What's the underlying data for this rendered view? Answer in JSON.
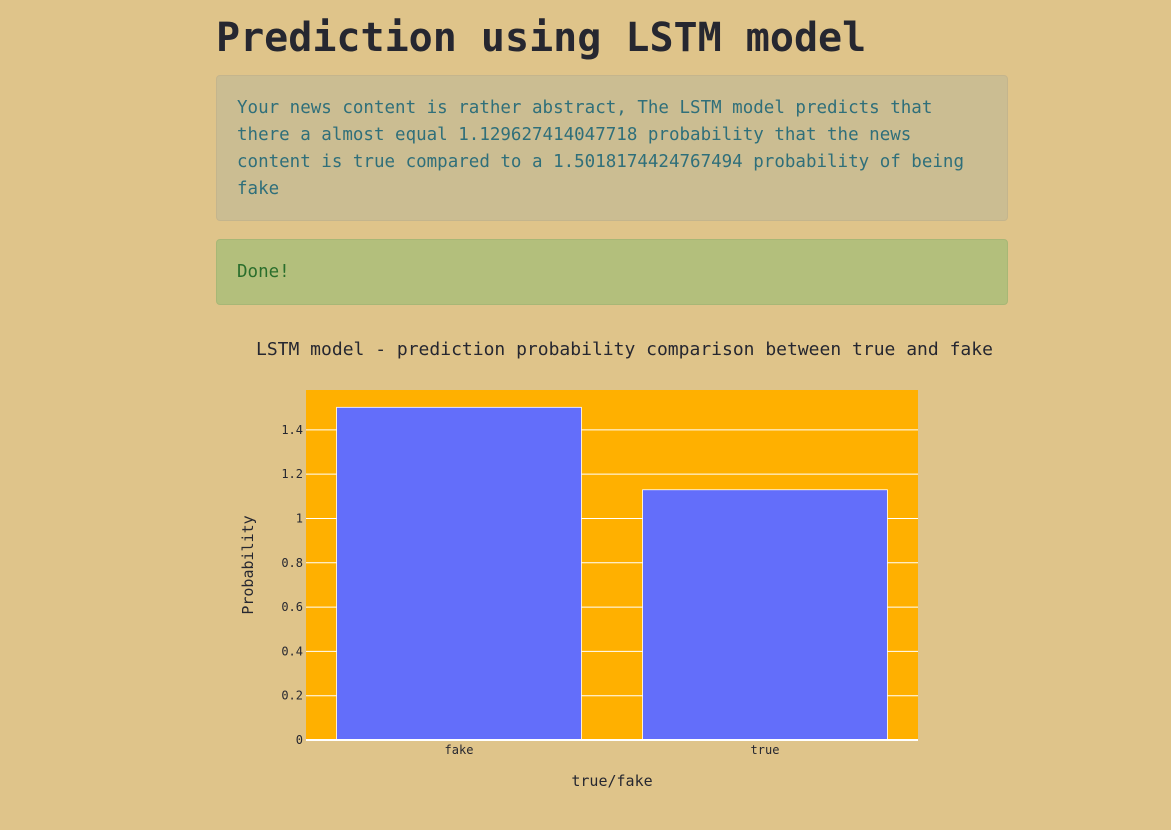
{
  "page": {
    "title": "Prediction using LSTM model"
  },
  "info_message": "Your news content is rather abstract, The LSTM model predicts that there a almost equal 1.129627414047718 probability that the news content is true compared to a 1.5018174424767494 probability of being fake",
  "success_message": "Done!",
  "colors": {
    "background": "#dfc48a",
    "plot_bg": "#ffb000",
    "bar": "#636efa",
    "grid": "#ffffff",
    "info_text": "#2f6f7a",
    "success_text": "#2a6e2c"
  },
  "chart_data": {
    "type": "bar",
    "title": "LSTM model - prediction probability comparison between true and fake",
    "xlabel": "true/fake",
    "ylabel": "Probability",
    "categories": [
      "fake",
      "true"
    ],
    "values": [
      1.5018174424767494,
      1.129627414047718
    ],
    "ylim": [
      0,
      1.58
    ],
    "yticks": [
      0,
      0.2,
      0.4,
      0.6,
      0.8,
      1,
      1.2,
      1.4
    ],
    "ytick_labels": [
      "0",
      "0.2",
      "0.4",
      "0.6",
      "0.8",
      "1",
      "1.2",
      "1.4"
    ],
    "grid": true,
    "legend": "none"
  }
}
